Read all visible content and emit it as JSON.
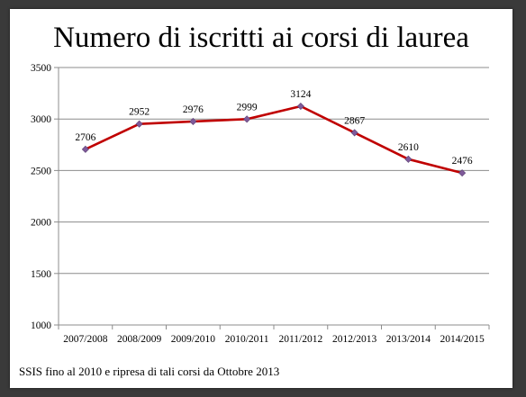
{
  "chart_data": {
    "type": "line",
    "title": "Numero di iscritti ai corsi di laurea",
    "categories": [
      "2007/2008",
      "2008/2009",
      "2009/2010",
      "2010/2011",
      "2011/2012",
      "2012/2013",
      "2013/2014",
      "2014/2015"
    ],
    "series": [
      {
        "values": [
          2706,
          2952,
          2976,
          2999,
          3124,
          2867,
          2610,
          2476
        ]
      }
    ],
    "yticks": [
      1000,
      1500,
      2000,
      2500,
      3000,
      3500
    ],
    "ylim": [
      1000,
      3500
    ],
    "grid": true,
    "legend": "none",
    "line_color": "#c00000",
    "marker_color": "#7f5a9a"
  },
  "footnote": "SSIS fino al 2010 e ripresa di tali corsi da Ottobre 2013"
}
